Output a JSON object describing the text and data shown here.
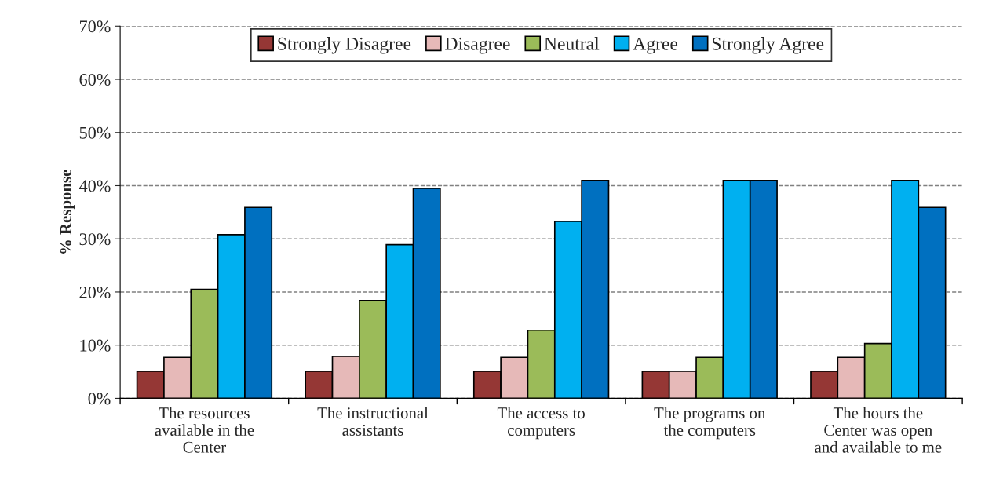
{
  "chart_data": {
    "type": "bar",
    "ylabel": "% Response",
    "categories": [
      "The resources\navailable in the\nCenter",
      "The instructional\nassistants",
      "The access to\ncomputers",
      "The programs on\nthe computers",
      "The hours the\nCenter was open\nand available to me"
    ],
    "series": [
      {
        "name": "Strongly Disagree",
        "color": "#953735",
        "values": [
          5.1,
          5.1,
          5.1,
          5.1,
          5.1
        ]
      },
      {
        "name": "Disagree",
        "color": "#e6b9b8",
        "values": [
          7.7,
          7.9,
          7.7,
          5.1,
          7.7
        ]
      },
      {
        "name": "Neutral",
        "color": "#9bbb59",
        "values": [
          20.5,
          18.4,
          12.8,
          7.7,
          10.3
        ]
      },
      {
        "name": "Agree",
        "color": "#00b0f0",
        "values": [
          30.8,
          28.9,
          33.3,
          41.0,
          41.0
        ]
      },
      {
        "name": "Strongly Agree",
        "color": "#0070c0",
        "values": [
          35.9,
          39.5,
          41.0,
          41.0,
          35.9
        ]
      }
    ],
    "ylim": [
      0,
      70
    ],
    "yticks": [
      {
        "value": 0,
        "label": "0%"
      },
      {
        "value": 10,
        "label": "10%"
      },
      {
        "value": 20,
        "label": "20%"
      },
      {
        "value": 30,
        "label": "30%"
      },
      {
        "value": 40,
        "label": "40%"
      },
      {
        "value": 50,
        "label": "50%"
      },
      {
        "value": 60,
        "label": "60%"
      },
      {
        "value": 70,
        "label": "70%"
      }
    ],
    "grid": "y",
    "legend": "top"
  }
}
